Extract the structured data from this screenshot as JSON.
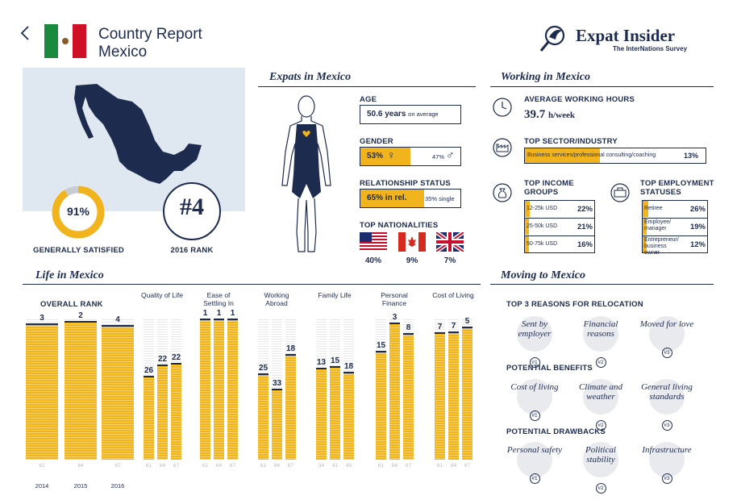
{
  "header": {
    "title_line1": "Country Report",
    "title_line2": "Mexico",
    "brand": "Expat Insider",
    "brand_sub": "The InterNations Survey"
  },
  "summary": {
    "satisfied_value": "91%",
    "satisfied_fraction": 0.91,
    "satisfied_label": "GENERALLY SATISFIED",
    "rank_value": "#4",
    "rank_label": "2016 RANK"
  },
  "expats": {
    "title": "Expats in Mexico",
    "age_label": "AGE",
    "age_value": "50.6 years",
    "age_suffix": "on average",
    "gender_label": "GENDER",
    "female_pct": "53%",
    "female_fraction": 0.53,
    "male_pct": "47%",
    "relationship_label": "RELATIONSHIP STATUS",
    "rel_value": "65% in rel.",
    "rel_fraction": 0.65,
    "single_value": "35% single",
    "nationalities_label": "TOP NATIONALITIES",
    "nationalities": [
      {
        "flag": "usa-flag",
        "pct": "40%"
      },
      {
        "flag": "canada-flag",
        "pct": "9%"
      },
      {
        "flag": "uk-flag",
        "pct": "7%"
      }
    ]
  },
  "working": {
    "title": "Working in Mexico",
    "hours_label": "AVERAGE WORKING HOURS",
    "hours_value": "39.7",
    "hours_unit": "h/week",
    "sector_label": "TOP SECTOR/INDUSTRY",
    "sector_name": "Business services/professional consulting/coaching",
    "sector_pct": "13%",
    "sector_fraction": 0.13,
    "income_label_1": "TOP INCOME",
    "income_label_2": "GROUPS",
    "income": [
      {
        "name": "12-25k USD",
        "pct": "22%",
        "fraction": 0.22
      },
      {
        "name": "25-50k USD",
        "pct": "21%",
        "fraction": 0.21
      },
      {
        "name": "50-75k USD",
        "pct": "16%",
        "fraction": 0.16
      }
    ],
    "employment_label_1": "TOP EMPLOYMENT",
    "employment_label_2": "STATUSES",
    "employment": [
      {
        "name": "Retiree",
        "pct": "26%",
        "fraction": 0.26
      },
      {
        "name": "Employee/ manager",
        "pct": "19%",
        "fraction": 0.19
      },
      {
        "name": "Entrepreneur/ business owner",
        "pct": "12%",
        "fraction": 0.12
      }
    ]
  },
  "life": {
    "title": "Life in Mexico",
    "overall_label": "OVERALL RANK",
    "years": [
      "2014",
      "2015",
      "2016"
    ],
    "overall_ranks": [
      3,
      2,
      4
    ],
    "overall_totals": [
      61,
      64,
      67
    ],
    "categories": [
      {
        "label": "Quality of Life",
        "ranks": [
          26,
          22,
          22
        ],
        "totals": [
          61,
          64,
          67
        ]
      },
      {
        "label": "Ease of Settling In",
        "ranks": [
          1,
          1,
          1
        ],
        "totals": [
          61,
          64,
          67
        ]
      },
      {
        "label": "Working Abroad",
        "ranks": [
          25,
          33,
          18
        ],
        "totals": [
          61,
          64,
          67
        ]
      },
      {
        "label": "Family Life",
        "ranks": [
          13,
          15,
          18
        ],
        "totals": [
          34,
          41,
          45
        ]
      },
      {
        "label": "Personal Finance",
        "ranks": [
          15,
          3,
          8
        ],
        "totals": [
          61,
          64,
          67
        ]
      },
      {
        "label": "Cost of Living",
        "ranks": [
          7,
          7,
          5
        ],
        "totals": [
          61,
          64,
          67
        ]
      }
    ]
  },
  "moving": {
    "title": "Moving to Mexico",
    "reasons_label": "TOP 3 REASONS FOR RELOCATION",
    "reasons": [
      "Sent by employer",
      "Financial reasons",
      "Moved for love"
    ],
    "benefits_label": "POTENTIAL BENEFITS",
    "benefits": [
      "Cost of living",
      "Climate and weather",
      "General living standards"
    ],
    "drawbacks_label": "POTENTIAL DRAWBACKS",
    "drawbacks": [
      "Personal safety",
      "Political stability",
      "Infrastructure"
    ],
    "num_labels": [
      "#1",
      "#2",
      "#3"
    ]
  },
  "colors": {
    "navy": "#1d2b4f",
    "gold": "#f2b41c",
    "map_bg": "#dfe7f1"
  }
}
